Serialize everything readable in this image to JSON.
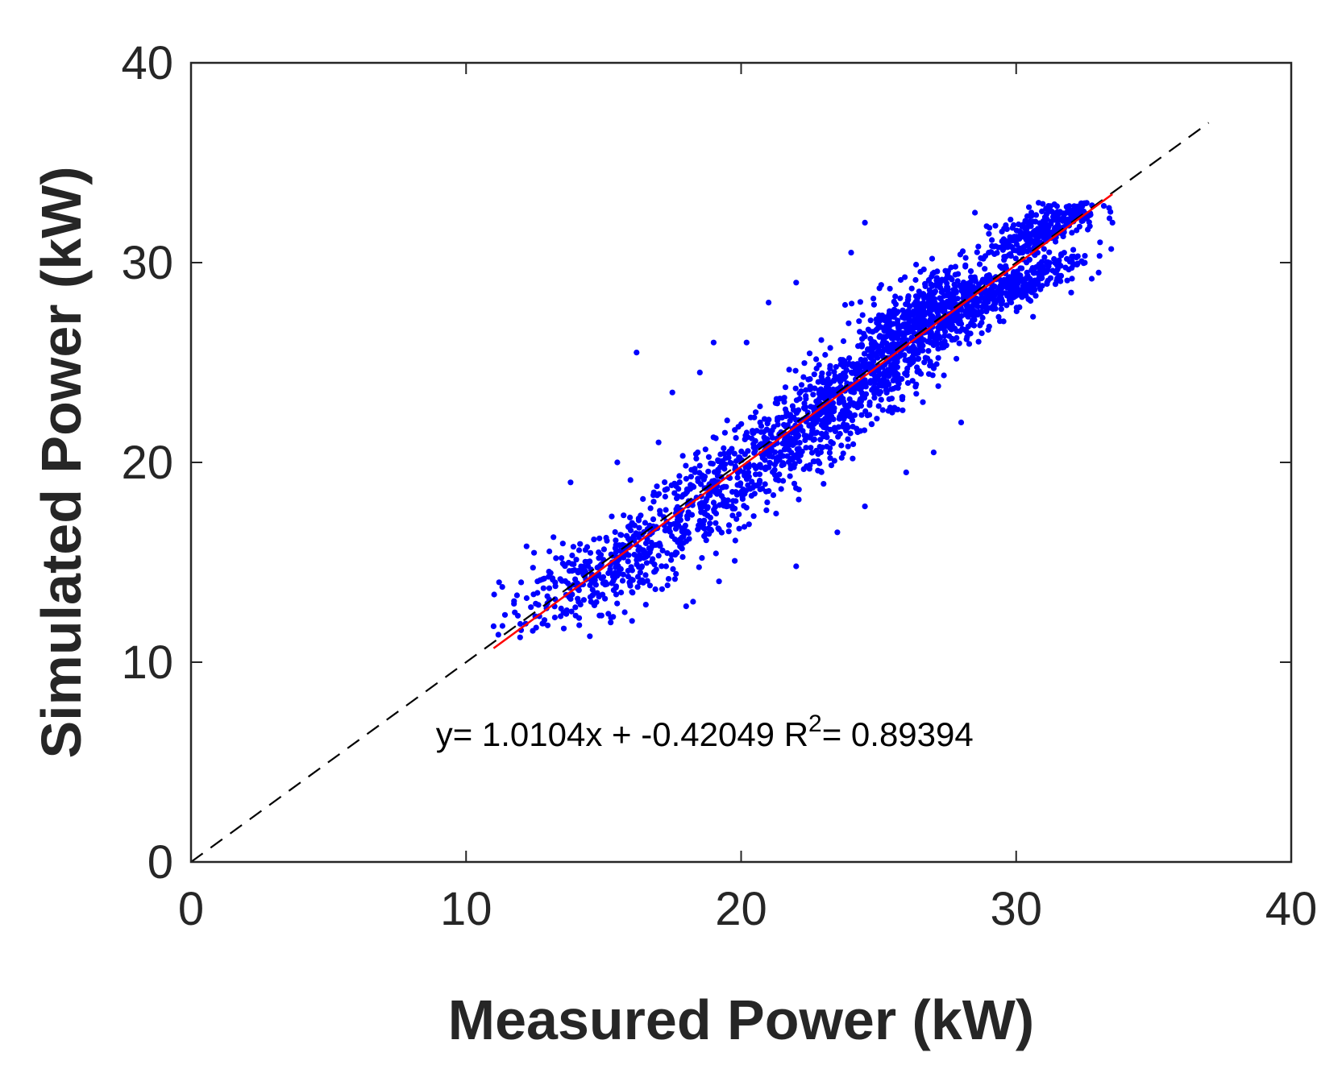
{
  "chart_data": {
    "type": "scatter",
    "xlabel": "Measured Power (kW)",
    "ylabel": "Simulated Power (kW)",
    "xlim": [
      0,
      40
    ],
    "ylim": [
      0,
      40
    ],
    "xticks": [
      "0",
      "10",
      "20",
      "30",
      "40"
    ],
    "yticks": [
      "0",
      "10",
      "20",
      "30",
      "40"
    ],
    "grid": false,
    "annotation": {
      "prefix": "y= 1.0104x + -0.42049  R",
      "superscript": "2",
      "suffix": "= 0.89394"
    },
    "reference_line": {
      "style": "dashed",
      "color": "#000000",
      "x": [
        0,
        37
      ],
      "y": [
        0,
        37
      ]
    },
    "fit_line": {
      "color": "#ff0000",
      "slope": 1.0104,
      "intercept": -0.42049,
      "x": [
        11,
        33.5
      ]
    },
    "colors": {
      "points": "#0000ff",
      "fit": "#ff0000",
      "reference": "#000000"
    },
    "clusters": [
      {
        "cx": 14.0,
        "cy": 14.0,
        "count": 180,
        "sx": 1.3,
        "sy": 1.1
      },
      {
        "cx": 16.5,
        "cy": 15.5,
        "count": 200,
        "sx": 1.2,
        "sy": 1.2
      },
      {
        "cx": 19.0,
        "cy": 18.3,
        "count": 260,
        "sx": 1.3,
        "sy": 1.2
      },
      {
        "cx": 21.5,
        "cy": 21.0,
        "count": 260,
        "sx": 1.2,
        "sy": 1.2
      },
      {
        "cx": 23.5,
        "cy": 23.0,
        "count": 300,
        "sx": 1.1,
        "sy": 1.2
      },
      {
        "cx": 25.5,
        "cy": 25.6,
        "count": 400,
        "sx": 1.0,
        "sy": 1.3
      },
      {
        "cx": 27.5,
        "cy": 27.8,
        "count": 420,
        "sx": 1.1,
        "sy": 1.1
      },
      {
        "cx": 29.8,
        "cy": 28.7,
        "count": 300,
        "sx": 1.3,
        "sy": 0.5
      },
      {
        "cx": 31.0,
        "cy": 31.8,
        "count": 300,
        "sx": 1.0,
        "sy": 0.6
      }
    ],
    "outliers": [
      [
        16.2,
        25.5
      ],
      [
        18.5,
        24.5
      ],
      [
        17.5,
        23.5
      ],
      [
        19.0,
        26.0
      ],
      [
        20.2,
        26.0
      ],
      [
        21.0,
        28.0
      ],
      [
        22.0,
        29.0
      ],
      [
        24.5,
        32.0
      ],
      [
        24.0,
        30.5
      ],
      [
        27.0,
        20.5
      ],
      [
        28.0,
        22.0
      ],
      [
        26.0,
        19.5
      ],
      [
        24.5,
        17.8
      ],
      [
        23.5,
        16.5
      ],
      [
        22.0,
        14.8
      ],
      [
        18.0,
        12.8
      ],
      [
        14.5,
        11.3
      ],
      [
        12.0,
        11.6
      ],
      [
        11.0,
        11.8
      ],
      [
        11.2,
        14.0
      ],
      [
        12.2,
        15.8
      ],
      [
        13.8,
        19.0
      ],
      [
        15.5,
        20.0
      ],
      [
        17.0,
        21.0
      ],
      [
        28.5,
        32.5
      ],
      [
        33.5,
        32.0
      ],
      [
        33.0,
        29.5
      ],
      [
        32.0,
        28.5
      ]
    ]
  }
}
